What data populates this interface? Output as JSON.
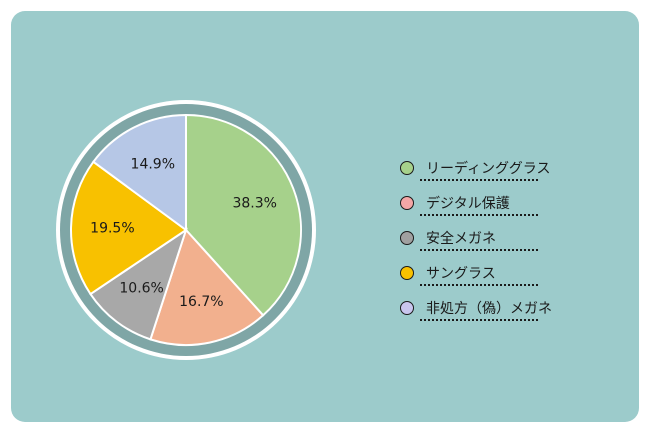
{
  "chart_data": {
    "type": "pie",
    "title": "",
    "slices": [
      {
        "label": "リーディンググラス",
        "value": 38.3,
        "value_label": "38.3%",
        "color": "#a6d18b"
      },
      {
        "label": "デジタル保護",
        "value": 16.7,
        "value_label": "16.7%",
        "color": "#f2b08e"
      },
      {
        "label": "安全メガネ",
        "value": 10.6,
        "value_label": "10.6%",
        "color": "#a8a8a8"
      },
      {
        "label": "サングラス",
        "value": 19.5,
        "value_label": "19.5%",
        "color": "#f8c100"
      },
      {
        "label": "非処方（偽）メガネ",
        "value": 14.9,
        "value_label": "14.9%",
        "color": "#b6c7e6"
      }
    ],
    "legend": {
      "placement": "right",
      "dot_colors": [
        "#a6d18b",
        "#f4a6a6",
        "#a0a0a0",
        "#f8c100",
        "#c9c6ee"
      ]
    }
  }
}
